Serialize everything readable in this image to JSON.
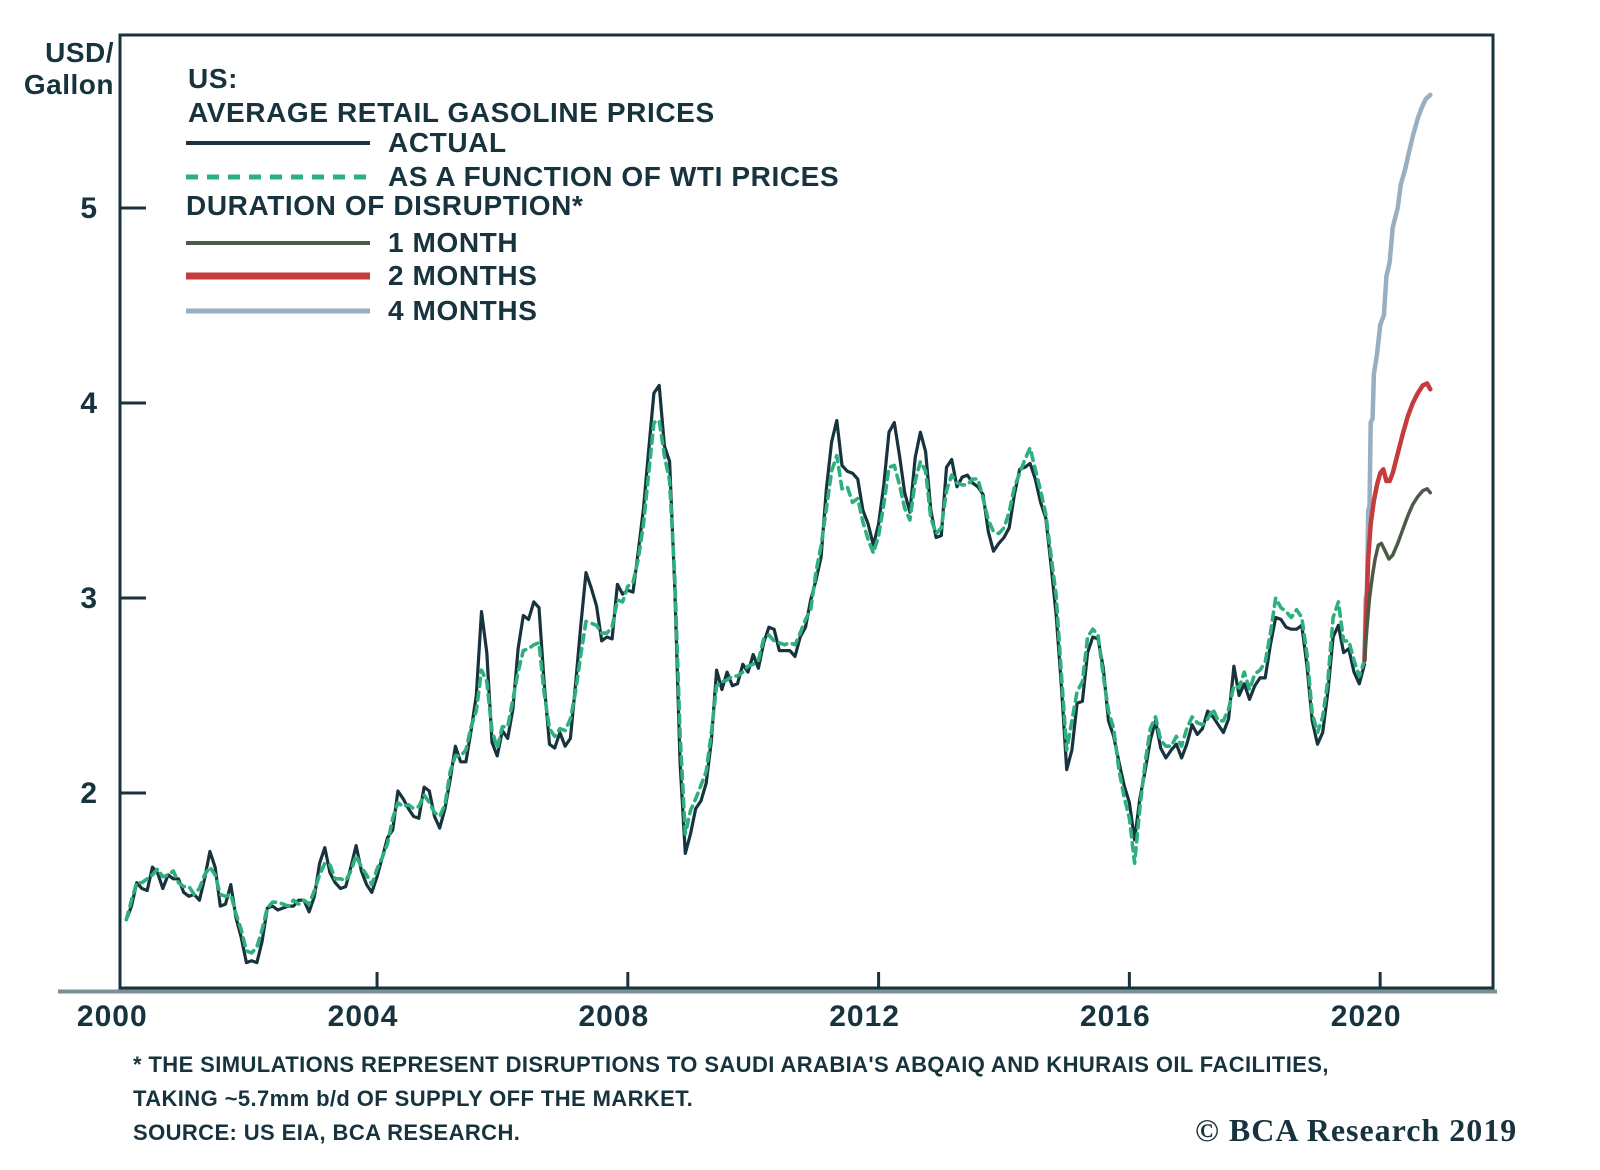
{
  "axis_unit": {
    "line1": "USD/",
    "line2": "Gallon"
  },
  "legend": {
    "title_line1": "US:",
    "title_line2": "AVERAGE RETAIL GASOLINE PRICES",
    "actual_label": "ACTUAL",
    "wti_label": "AS A FUNCTION OF WTI PRICES",
    "duration_heading": "DURATION OF DISRUPTION*",
    "one_month_label": "1 MONTH",
    "two_months_label": "2 MONTHS",
    "four_months_label": "4 MONTHS"
  },
  "footnote": {
    "line1": "* THE SIMULATIONS REPRESENT DISRUPTIONS TO SAUDI ARABIA'S ABQAIQ AND KHURAIS OIL FACILITIES,",
    "line2": "TAKING ~5.7mm b/d OF SUPPLY OFF THE MARKET.",
    "source": "SOURCE: US EIA, BCA RESEARCH.",
    "copyright": "© BCA Research 2019"
  },
  "colors": {
    "actual": "#17333e",
    "wti": "#2db07e",
    "one_month": "#4c5a48",
    "two_months": "#c43c3e",
    "four_months": "#99aebf",
    "axis": "#17333e",
    "axis_shadow": "#7d8f96",
    "text": "#17333e",
    "copyright": "#2aa87c"
  },
  "chart_data": {
    "type": "line",
    "title": "US: AVERAGE RETAIL GASOLINE PRICES",
    "xlabel": "",
    "ylabel": "USD/Gallon",
    "grid": false,
    "legend_position": "top-left",
    "x_axis": {
      "ticks": [
        2000,
        2004,
        2008,
        2012,
        2016,
        2020
      ],
      "range": [
        1999.9,
        2021.8
      ]
    },
    "y_axis": {
      "ticks": [
        2,
        3,
        4,
        5
      ],
      "range": [
        1.0,
        5.887
      ]
    },
    "series": [
      {
        "name": "ACTUAL",
        "color_key": "actual",
        "style": "solid",
        "x_start": 2000.0,
        "x_step": 0.0833333,
        "values": [
          1.35,
          1.42,
          1.54,
          1.51,
          1.5,
          1.62,
          1.59,
          1.51,
          1.58,
          1.56,
          1.56,
          1.49,
          1.47,
          1.48,
          1.45,
          1.56,
          1.7,
          1.62,
          1.42,
          1.43,
          1.53,
          1.36,
          1.26,
          1.13,
          1.14,
          1.13,
          1.24,
          1.41,
          1.42,
          1.4,
          1.41,
          1.42,
          1.42,
          1.45,
          1.45,
          1.39,
          1.47,
          1.64,
          1.72,
          1.59,
          1.54,
          1.51,
          1.52,
          1.62,
          1.73,
          1.6,
          1.53,
          1.49,
          1.57,
          1.67,
          1.77,
          1.81,
          2.01,
          1.97,
          1.92,
          1.88,
          1.87,
          2.03,
          2.01,
          1.88,
          1.82,
          1.92,
          2.07,
          2.24,
          2.16,
          2.16,
          2.32,
          2.5,
          2.93,
          2.72,
          2.26,
          2.19,
          2.32,
          2.28,
          2.43,
          2.74,
          2.91,
          2.89,
          2.98,
          2.95,
          2.56,
          2.25,
          2.23,
          2.31,
          2.24,
          2.28,
          2.56,
          2.86,
          3.13,
          3.05,
          2.96,
          2.78,
          2.8,
          2.79,
          3.07,
          3.02,
          3.04,
          3.03,
          3.24,
          3.46,
          3.76,
          4.05,
          4.09,
          3.78,
          3.7,
          3.05,
          2.15,
          1.69,
          1.79,
          1.92,
          1.96,
          2.05,
          2.27,
          2.63,
          2.53,
          2.62,
          2.55,
          2.56,
          2.66,
          2.62,
          2.71,
          2.64,
          2.77,
          2.85,
          2.84,
          2.73,
          2.73,
          2.73,
          2.7,
          2.8,
          2.85,
          2.99,
          3.09,
          3.21,
          3.56,
          3.8,
          3.91,
          3.68,
          3.65,
          3.64,
          3.61,
          3.45,
          3.38,
          3.27,
          3.38,
          3.58,
          3.85,
          3.9,
          3.73,
          3.54,
          3.44,
          3.72,
          3.85,
          3.75,
          3.45,
          3.31,
          3.32,
          3.67,
          3.71,
          3.57,
          3.62,
          3.63,
          3.59,
          3.57,
          3.53,
          3.34,
          3.24,
          3.28,
          3.31,
          3.36,
          3.53,
          3.66,
          3.67,
          3.69,
          3.61,
          3.49,
          3.41,
          3.17,
          2.91,
          2.54,
          2.12,
          2.22,
          2.46,
          2.47,
          2.72,
          2.8,
          2.79,
          2.64,
          2.37,
          2.29,
          2.16,
          2.04,
          1.95,
          1.76,
          1.97,
          2.11,
          2.27,
          2.37,
          2.23,
          2.18,
          2.22,
          2.25,
          2.18,
          2.25,
          2.35,
          2.3,
          2.33,
          2.42,
          2.39,
          2.35,
          2.31,
          2.38,
          2.65,
          2.5,
          2.56,
          2.48,
          2.55,
          2.59,
          2.59,
          2.76,
          2.9,
          2.89,
          2.85,
          2.84,
          2.84,
          2.86,
          2.65,
          2.37,
          2.25,
          2.31,
          2.52,
          2.8,
          2.86,
          2.72,
          2.74,
          2.62,
          2.56,
          2.66
        ]
      },
      {
        "name": "AS A FUNCTION OF WTI PRICES",
        "color_key": "wti",
        "style": "dashed",
        "x_start": 2000.0,
        "x_step": 0.0833333,
        "values": [
          1.35,
          1.45,
          1.54,
          1.54,
          1.56,
          1.58,
          1.61,
          1.57,
          1.58,
          1.6,
          1.54,
          1.52,
          1.52,
          1.48,
          1.51,
          1.58,
          1.62,
          1.58,
          1.48,
          1.47,
          1.48,
          1.38,
          1.3,
          1.19,
          1.18,
          1.21,
          1.3,
          1.41,
          1.44,
          1.44,
          1.43,
          1.42,
          1.45,
          1.43,
          1.45,
          1.43,
          1.5,
          1.58,
          1.64,
          1.63,
          1.56,
          1.56,
          1.55,
          1.6,
          1.68,
          1.62,
          1.58,
          1.53,
          1.61,
          1.67,
          1.74,
          1.87,
          1.95,
          1.93,
          1.94,
          1.92,
          1.93,
          1.99,
          1.95,
          1.9,
          1.88,
          1.94,
          2.11,
          2.19,
          2.19,
          2.22,
          2.34,
          2.42,
          2.63,
          2.57,
          2.32,
          2.23,
          2.34,
          2.34,
          2.48,
          2.62,
          2.73,
          2.74,
          2.76,
          2.77,
          2.51,
          2.33,
          2.29,
          2.33,
          2.32,
          2.38,
          2.52,
          2.71,
          2.88,
          2.87,
          2.86,
          2.82,
          2.82,
          2.85,
          2.99,
          2.98,
          3.06,
          3.08,
          3.2,
          3.38,
          3.64,
          3.9,
          3.91,
          3.73,
          3.6,
          3.1,
          2.3,
          1.79,
          1.91,
          1.97,
          2.04,
          2.11,
          2.31,
          2.55,
          2.57,
          2.58,
          2.6,
          2.6,
          2.62,
          2.65,
          2.66,
          2.68,
          2.79,
          2.81,
          2.78,
          2.77,
          2.76,
          2.77,
          2.76,
          2.82,
          2.89,
          2.94,
          3.13,
          3.27,
          3.46,
          3.65,
          3.73,
          3.56,
          3.57,
          3.49,
          3.51,
          3.39,
          3.3,
          3.23,
          3.32,
          3.48,
          3.67,
          3.68,
          3.58,
          3.46,
          3.4,
          3.6,
          3.7,
          3.65,
          3.41,
          3.33,
          3.36,
          3.55,
          3.63,
          3.59,
          3.58,
          3.58,
          3.61,
          3.61,
          3.51,
          3.4,
          3.34,
          3.33,
          3.36,
          3.44,
          3.57,
          3.64,
          3.71,
          3.77,
          3.66,
          3.55,
          3.43,
          3.22,
          3.01,
          2.6,
          2.22,
          2.37,
          2.52,
          2.57,
          2.8,
          2.84,
          2.81,
          2.6,
          2.42,
          2.33,
          2.12,
          1.98,
          1.87,
          1.64,
          1.92,
          2.15,
          2.33,
          2.39,
          2.27,
          2.24,
          2.24,
          2.29,
          2.24,
          2.33,
          2.39,
          2.36,
          2.35,
          2.38,
          2.43,
          2.37,
          2.37,
          2.43,
          2.55,
          2.54,
          2.62,
          2.53,
          2.61,
          2.63,
          2.67,
          2.82,
          3.0,
          2.95,
          2.93,
          2.9,
          2.94,
          2.9,
          2.71,
          2.41,
          2.31,
          2.39,
          2.58,
          2.9,
          2.98,
          2.78,
          2.78,
          2.68,
          2.6,
          2.68
        ]
      },
      {
        "name": "4 MONTHS",
        "color_key": "four_months",
        "style": "solid",
        "x": [
          2019.75,
          2019.77,
          2019.79,
          2019.81,
          2019.83,
          2019.85,
          2019.88,
          2019.9,
          2019.95,
          2020.0,
          2020.06,
          2020.1,
          2020.15,
          2020.2,
          2020.28,
          2020.33,
          2020.4,
          2020.47,
          2020.53,
          2020.6,
          2020.67,
          2020.73,
          2020.8
        ],
        "values": [
          2.68,
          3.0,
          3.02,
          3.45,
          3.47,
          3.9,
          3.92,
          4.15,
          4.25,
          4.4,
          4.45,
          4.65,
          4.72,
          4.9,
          5.0,
          5.12,
          5.2,
          5.3,
          5.38,
          5.46,
          5.52,
          5.56,
          5.58
        ]
      },
      {
        "name": "2 MONTHS",
        "color_key": "two_months",
        "style": "solid",
        "x": [
          2019.75,
          2019.78,
          2019.81,
          2019.85,
          2019.9,
          2019.95,
          2020.0,
          2020.05,
          2020.1,
          2020.15,
          2020.2,
          2020.28,
          2020.36,
          2020.44,
          2020.52,
          2020.6,
          2020.68,
          2020.75,
          2020.8
        ],
        "values": [
          2.68,
          2.95,
          3.2,
          3.38,
          3.5,
          3.58,
          3.64,
          3.66,
          3.6,
          3.6,
          3.64,
          3.74,
          3.84,
          3.93,
          4.0,
          4.05,
          4.09,
          4.1,
          4.07
        ]
      },
      {
        "name": "1 MONTH",
        "color_key": "one_month",
        "style": "solid",
        "x": [
          2019.75,
          2019.79,
          2019.83,
          2019.88,
          2019.92,
          2019.97,
          2020.02,
          2020.08,
          2020.14,
          2020.2,
          2020.28,
          2020.36,
          2020.44,
          2020.52,
          2020.6,
          2020.68,
          2020.75,
          2020.8
        ],
        "values": [
          2.68,
          2.85,
          3.0,
          3.12,
          3.2,
          3.27,
          3.28,
          3.24,
          3.2,
          3.22,
          3.28,
          3.35,
          3.42,
          3.48,
          3.52,
          3.55,
          3.56,
          3.54
        ]
      }
    ]
  }
}
